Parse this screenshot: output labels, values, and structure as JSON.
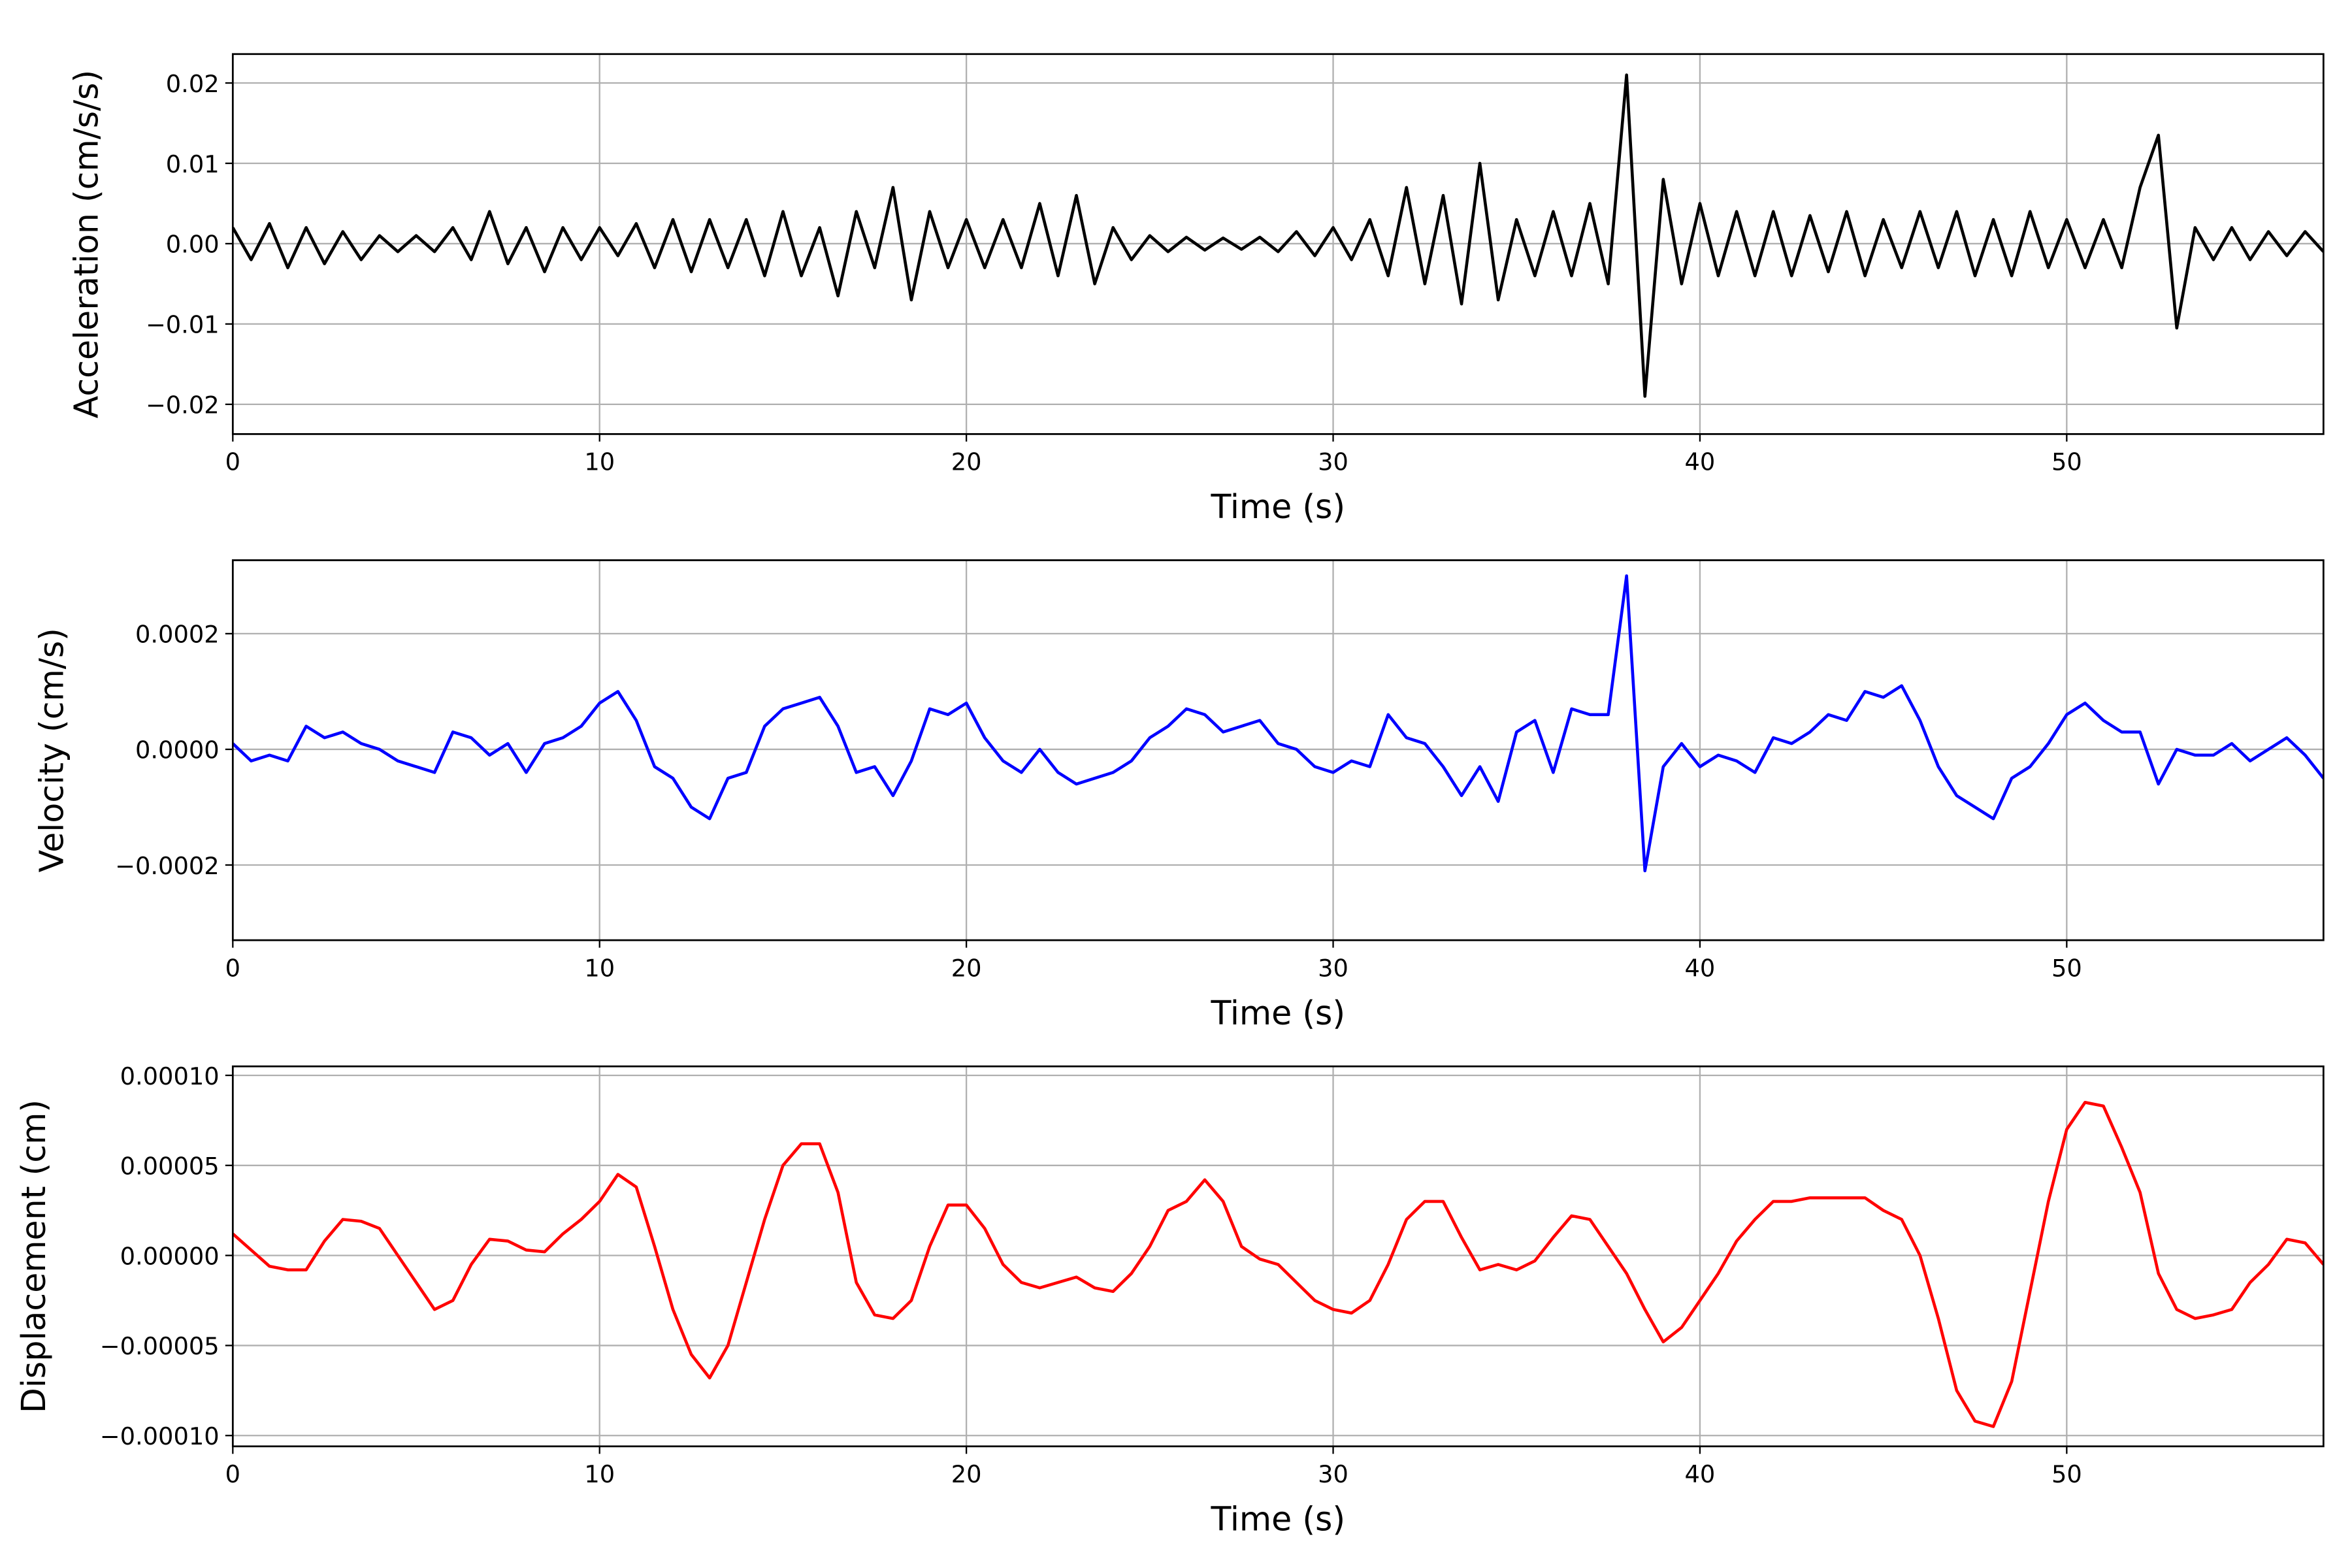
{
  "chart_data": [
    {
      "type": "line",
      "ylabel": "Acceleration (cm/s/s)",
      "xlabel": "Time (s)",
      "color": "#000000",
      "grid": true,
      "xlim": [
        0,
        57
      ],
      "ylim": [
        -0.0237,
        0.0236
      ],
      "xticks": [
        0,
        10,
        20,
        30,
        40,
        50
      ],
      "yticks": [
        {
          "value": -0.02,
          "label": "−0.02"
        },
        {
          "value": -0.01,
          "label": "−0.01"
        },
        {
          "value": 0,
          "label": "0.00"
        },
        {
          "value": 0.01,
          "label": "0.01"
        },
        {
          "value": 0.02,
          "label": "0.02"
        }
      ],
      "x": [
        0,
        0.5,
        1,
        1.5,
        2,
        2.5,
        3,
        3.5,
        4,
        4.5,
        5,
        5.5,
        6,
        6.5,
        7,
        7.5,
        8,
        8.5,
        9,
        9.5,
        10,
        10.5,
        11,
        11.5,
        12,
        12.5,
        13,
        13.5,
        14,
        14.5,
        15,
        15.5,
        16,
        16.5,
        17,
        17.5,
        18,
        18.5,
        19,
        19.5,
        20,
        20.5,
        21,
        21.5,
        22,
        22.5,
        23,
        23.5,
        24,
        24.5,
        25,
        25.5,
        26,
        26.5,
        27,
        27.5,
        28,
        28.5,
        29,
        29.5,
        30,
        30.5,
        31,
        31.5,
        32,
        32.5,
        33,
        33.5,
        34,
        34.5,
        35,
        35.5,
        36,
        36.5,
        37,
        37.5,
        38,
        38.5,
        39,
        39.5,
        40,
        40.5,
        41,
        41.5,
        42,
        42.5,
        43,
        43.5,
        44,
        44.5,
        45,
        45.5,
        46,
        46.5,
        47,
        47.5,
        48,
        48.5,
        49,
        49.5,
        50,
        50.5,
        51,
        51.5,
        52,
        52.5,
        53,
        53.5,
        54,
        54.5,
        55,
        55.5,
        56,
        56.5,
        57
      ],
      "values": [
        0.002,
        -0.002,
        0.0025,
        -0.003,
        0.002,
        -0.0025,
        0.0015,
        -0.002,
        0.001,
        -0.001,
        0.001,
        -0.001,
        0.002,
        -0.002,
        0.004,
        -0.0025,
        0.002,
        -0.0035,
        0.002,
        -0.002,
        0.002,
        -0.0015,
        0.0025,
        -0.003,
        0.003,
        -0.0035,
        0.003,
        -0.003,
        0.003,
        -0.004,
        0.004,
        -0.004,
        0.002,
        -0.0065,
        0.004,
        -0.003,
        0.007,
        -0.007,
        0.004,
        -0.003,
        0.003,
        -0.003,
        0.003,
        -0.003,
        0.005,
        -0.004,
        0.006,
        -0.005,
        0.002,
        -0.002,
        0.001,
        -0.001,
        0.0008,
        -0.0008,
        0.0007,
        -0.0007,
        0.0008,
        -0.001,
        0.0015,
        -0.0015,
        0.002,
        -0.002,
        0.003,
        -0.004,
        0.007,
        -0.005,
        0.006,
        -0.0075,
        0.01,
        -0.007,
        0.003,
        -0.004,
        0.004,
        -0.004,
        0.005,
        -0.005,
        0.021,
        -0.019,
        0.008,
        -0.005,
        0.005,
        -0.004,
        0.004,
        -0.004,
        0.004,
        -0.004,
        0.0035,
        -0.0035,
        0.004,
        -0.004,
        0.003,
        -0.003,
        0.004,
        -0.003,
        0.004,
        -0.004,
        0.003,
        -0.004,
        0.004,
        -0.003,
        0.003,
        -0.003,
        0.003,
        -0.003,
        0.007,
        0.0135,
        -0.0105,
        0.002,
        -0.002,
        0.002,
        -0.002,
        0.0015,
        -0.0015,
        0.0015,
        -0.001
      ]
    },
    {
      "type": "line",
      "ylabel": "Velocity (cm/s)",
      "xlabel": "Time (s)",
      "color": "#0000ff",
      "grid": true,
      "xlim": [
        0,
        57
      ],
      "ylim": [
        -0.00033,
        0.000327
      ],
      "xticks": [
        0,
        10,
        20,
        30,
        40,
        50
      ],
      "yticks": [
        {
          "value": -0.0002,
          "label": "−0.0002"
        },
        {
          "value": 0,
          "label": "0.0000"
        },
        {
          "value": 0.0002,
          "label": "0.0002"
        }
      ],
      "x": [
        0,
        0.5,
        1,
        1.5,
        2,
        2.5,
        3,
        3.5,
        4,
        4.5,
        5,
        5.5,
        6,
        6.5,
        7,
        7.5,
        8,
        8.5,
        9,
        9.5,
        10,
        10.5,
        11,
        11.5,
        12,
        12.5,
        13,
        13.5,
        14,
        14.5,
        15,
        15.5,
        16,
        16.5,
        17,
        17.5,
        18,
        18.5,
        19,
        19.5,
        20,
        20.5,
        21,
        21.5,
        22,
        22.5,
        23,
        23.5,
        24,
        24.5,
        25,
        25.5,
        26,
        26.5,
        27,
        27.5,
        28,
        28.5,
        29,
        29.5,
        30,
        30.5,
        31,
        31.5,
        32,
        32.5,
        33,
        33.5,
        34,
        34.5,
        35,
        35.5,
        36,
        36.5,
        37,
        37.5,
        38,
        38.5,
        39,
        39.5,
        40,
        40.5,
        41,
        41.5,
        42,
        42.5,
        43,
        43.5,
        44,
        44.5,
        45,
        45.5,
        46,
        46.5,
        47,
        47.5,
        48,
        48.5,
        49,
        49.5,
        50,
        50.5,
        51,
        51.5,
        52,
        52.5,
        53,
        53.5,
        54,
        54.5,
        55,
        55.5,
        56,
        56.5,
        57
      ],
      "values": [
        1e-05,
        -2e-05,
        -1e-05,
        -2e-05,
        4e-05,
        2e-05,
        3e-05,
        1e-05,
        0,
        -2e-05,
        -3e-05,
        -4e-05,
        3e-05,
        2e-05,
        -1e-05,
        1e-05,
        -4e-05,
        1e-05,
        2e-05,
        4e-05,
        8e-05,
        0.0001,
        5e-05,
        -3e-05,
        -5e-05,
        -0.0001,
        -0.00012,
        -5e-05,
        -4e-05,
        4e-05,
        7e-05,
        8e-05,
        9e-05,
        4e-05,
        -4e-05,
        -3e-05,
        -8e-05,
        -2e-05,
        7e-05,
        6e-05,
        8e-05,
        2e-05,
        -2e-05,
        -4e-05,
        0,
        -4e-05,
        -6e-05,
        -5e-05,
        -4e-05,
        -2e-05,
        2e-05,
        4e-05,
        7e-05,
        6e-05,
        3e-05,
        4e-05,
        5e-05,
        1e-05,
        0,
        -3e-05,
        -4e-05,
        -2e-05,
        -3e-05,
        6e-05,
        2e-05,
        1e-05,
        -3e-05,
        -8e-05,
        -3e-05,
        -9e-05,
        3e-05,
        5e-05,
        -4e-05,
        7e-05,
        6e-05,
        6e-05,
        0.0003,
        -0.00021,
        -3e-05,
        1e-05,
        -3e-05,
        -1e-05,
        -2e-05,
        -4e-05,
        2e-05,
        1e-05,
        3e-05,
        6e-05,
        5e-05,
        0.0001,
        9e-05,
        0.00011,
        5e-05,
        -3e-05,
        -8e-05,
        -0.0001,
        -0.00012,
        -5e-05,
        -3e-05,
        1e-05,
        6e-05,
        8e-05,
        5e-05,
        3e-05,
        3e-05,
        -6e-05,
        0,
        -1e-05,
        -1e-05,
        1e-05,
        -2e-05,
        0,
        2e-05,
        -1e-05,
        -5e-05
      ]
    },
    {
      "type": "line",
      "ylabel": "Displacement (cm)",
      "xlabel": "Time (s)",
      "color": "#ff0000",
      "grid": true,
      "xlim": [
        0,
        57
      ],
      "ylim": [
        -0.000106,
        0.000105
      ],
      "xticks": [
        0,
        10,
        20,
        30,
        40,
        50
      ],
      "yticks": [
        {
          "value": -0.0001,
          "label": "−0.00010"
        },
        {
          "value": -5e-05,
          "label": "−0.00005"
        },
        {
          "value": 0,
          "label": "0.00000"
        },
        {
          "value": 5e-05,
          "label": "0.00005"
        },
        {
          "value": 0.0001,
          "label": "0.00010"
        }
      ],
      "x": [
        0,
        0.5,
        1,
        1.5,
        2,
        2.5,
        3,
        3.5,
        4,
        4.5,
        5,
        5.5,
        6,
        6.5,
        7,
        7.5,
        8,
        8.5,
        9,
        9.5,
        10,
        10.5,
        11,
        11.5,
        12,
        12.5,
        13,
        13.5,
        14,
        14.5,
        15,
        15.5,
        16,
        16.5,
        17,
        17.5,
        18,
        18.5,
        19,
        19.5,
        20,
        20.5,
        21,
        21.5,
        22,
        22.5,
        23,
        23.5,
        24,
        24.5,
        25,
        25.5,
        26,
        26.5,
        27,
        27.5,
        28,
        28.5,
        29,
        29.5,
        30,
        30.5,
        31,
        31.5,
        32,
        32.5,
        33,
        33.5,
        34,
        34.5,
        35,
        35.5,
        36,
        36.5,
        37,
        37.5,
        38,
        38.5,
        39,
        39.5,
        40,
        40.5,
        41,
        41.5,
        42,
        42.5,
        43,
        43.5,
        44,
        44.5,
        45,
        45.5,
        46,
        46.5,
        47,
        47.5,
        48,
        48.5,
        49,
        49.5,
        50,
        50.5,
        51,
        51.5,
        52,
        52.5,
        53,
        53.5,
        54,
        54.5,
        55,
        55.5,
        56,
        56.5,
        57
      ],
      "values": [
        1.2e-05,
        3e-06,
        -6e-06,
        -8e-06,
        -8e-06,
        8e-06,
        2e-05,
        1.9e-05,
        1.5e-05,
        0,
        -1.5e-05,
        -3e-05,
        -2.5e-05,
        -5e-06,
        9e-06,
        8e-06,
        3e-06,
        2e-06,
        1.2e-05,
        2e-05,
        3e-05,
        4.5e-05,
        3.8e-05,
        5e-06,
        -3e-05,
        -5.5e-05,
        -6.8e-05,
        -5e-05,
        -1.5e-05,
        2e-05,
        5e-05,
        6.2e-05,
        6.2e-05,
        3.5e-05,
        -1.5e-05,
        -3.3e-05,
        -3.5e-05,
        -2.5e-05,
        5e-06,
        2.8e-05,
        2.8e-05,
        1.5e-05,
        -5e-06,
        -1.5e-05,
        -1.8e-05,
        -1.5e-05,
        -1.2e-05,
        -1.8e-05,
        -2e-05,
        -1e-05,
        5e-06,
        2.5e-05,
        3e-05,
        4.2e-05,
        3e-05,
        5e-06,
        -2e-06,
        -5e-06,
        -1.5e-05,
        -2.5e-05,
        -3e-05,
        -3.2e-05,
        -2.5e-05,
        -5e-06,
        2e-05,
        3e-05,
        3e-05,
        1e-05,
        -8e-06,
        -5e-06,
        -8e-06,
        -3e-06,
        1e-05,
        2.2e-05,
        2e-05,
        5e-06,
        -1e-05,
        -3e-05,
        -4.8e-05,
        -4e-05,
        -2.5e-05,
        -1e-05,
        8e-06,
        2e-05,
        3e-05,
        3e-05,
        3.2e-05,
        3.2e-05,
        3.2e-05,
        3.2e-05,
        2.5e-05,
        2e-05,
        0,
        -3.5e-05,
        -7.5e-05,
        -9.2e-05,
        -9.5e-05,
        -7e-05,
        -2e-05,
        3e-05,
        7e-05,
        8.5e-05,
        8.3e-05,
        6e-05,
        3.5e-05,
        -1e-05,
        -3e-05,
        -3.5e-05,
        -3.3e-05,
        -3e-05,
        -1.5e-05,
        -5e-06,
        9e-06,
        7e-06,
        -5e-06
      ]
    }
  ]
}
